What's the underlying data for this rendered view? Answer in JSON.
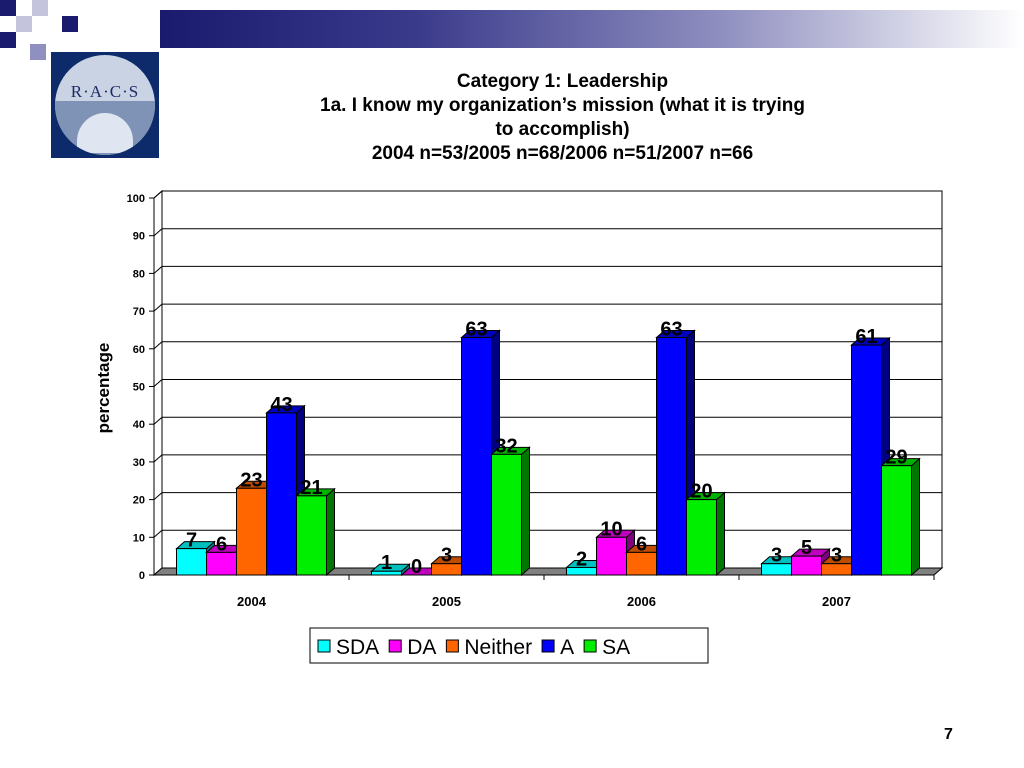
{
  "slide": {
    "page_number": "7"
  },
  "logo": {
    "text": "R·A·C·S"
  },
  "header": {
    "accent_colors": [
      "#1a1a6e",
      "#8f8fc0",
      "#c4c4dc"
    ]
  },
  "chart_data": {
    "type": "bar",
    "title_lines": [
      "Category 1: Leadership",
      "1a. I know my organization’s mission (what it is trying",
      "to accomplish)",
      "2004 n=53/2005 n=68/2006 n=51/2007 n=66"
    ],
    "ylabel": "percentage",
    "xlabel": "",
    "ylim": [
      0,
      100
    ],
    "yticks": [
      0,
      10,
      20,
      30,
      40,
      50,
      60,
      70,
      80,
      90,
      100
    ],
    "grid": true,
    "legend_position": "bottom",
    "style": "3d",
    "categories": [
      "2004",
      "2005",
      "2006",
      "2007"
    ],
    "series": [
      {
        "name": "SDA",
        "color": "#00ffff",
        "values": [
          7,
          1,
          2,
          3
        ]
      },
      {
        "name": "DA",
        "color": "#ff00ff",
        "values": [
          6,
          0,
          10,
          5
        ]
      },
      {
        "name": "Neither",
        "color": "#ff6600",
        "values": [
          23,
          3,
          6,
          3
        ]
      },
      {
        "name": "A",
        "color": "#0000ff",
        "values": [
          43,
          63,
          63,
          61
        ]
      },
      {
        "name": "SA",
        "color": "#00ee00",
        "values": [
          21,
          32,
          20,
          29
        ]
      }
    ]
  }
}
